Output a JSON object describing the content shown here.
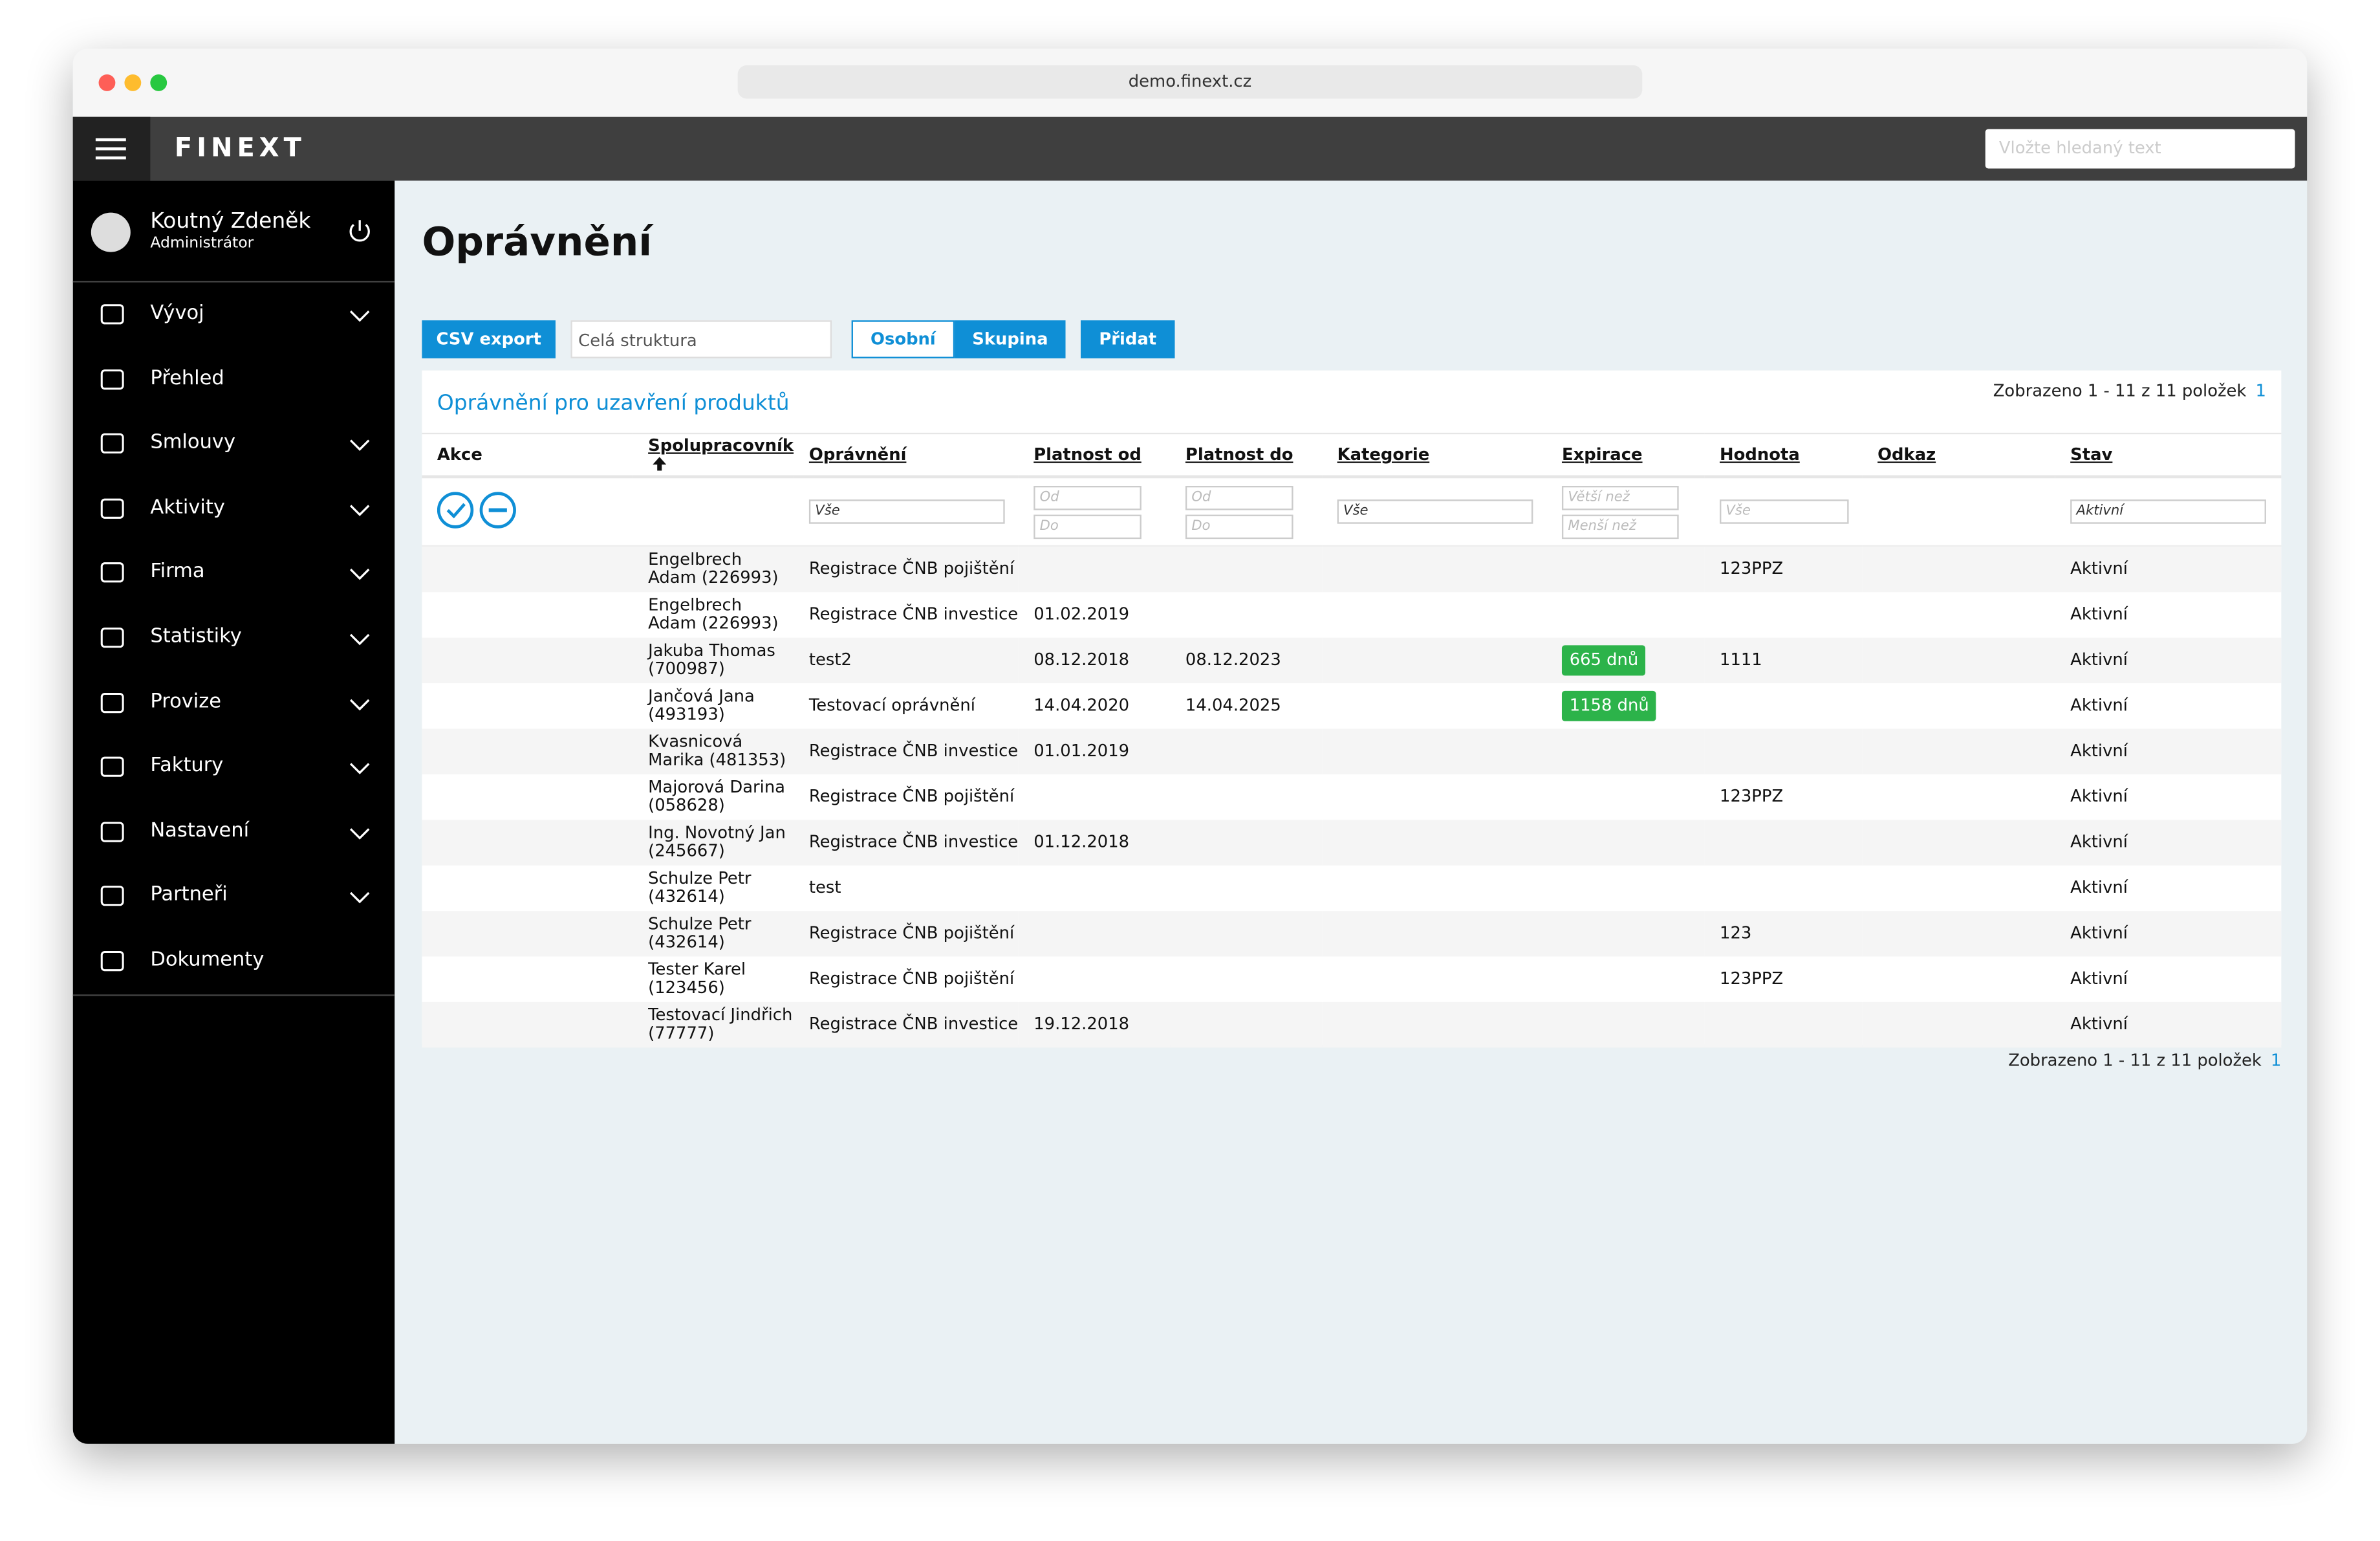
{
  "browser": {
    "url": "demo.finext.cz"
  },
  "header": {
    "logo": "FINEXT",
    "search_placeholder": "Vložte hledaný text"
  },
  "user": {
    "name": "Koutný Zdeněk",
    "role": "Administrátor"
  },
  "nav": [
    {
      "label": "Vývoj",
      "expandable": true
    },
    {
      "label": "Přehled",
      "expandable": false
    },
    {
      "label": "Smlouvy",
      "expandable": true
    },
    {
      "label": "Aktivity",
      "expandable": true
    },
    {
      "label": "Firma",
      "expandable": true
    },
    {
      "label": "Statistiky",
      "expandable": true
    },
    {
      "label": "Provize",
      "expandable": true
    },
    {
      "label": "Faktury",
      "expandable": true
    },
    {
      "label": "Nastavení",
      "expandable": true
    },
    {
      "label": "Partneři",
      "expandable": true
    },
    {
      "label": "Dokumenty",
      "expandable": false
    }
  ],
  "page": {
    "title": "Oprávnění"
  },
  "toolbar": {
    "export": "CSV export",
    "scope_placeholder": "Celá struktura",
    "tabs": [
      "Osobní",
      "Skupina"
    ],
    "add": "Přidat"
  },
  "panel": {
    "title": "Oprávnění pro uzavření produktů",
    "pagination": "Zobrazeno 1 - 11 z 11 položek",
    "page": 1
  },
  "table": {
    "columns": [
      "Akce",
      "Spolupracovník",
      "Oprávnění",
      "Platnost od",
      "Platnost do",
      "Kategorie",
      "Expirace",
      "Hodnota",
      "Odkaz",
      "Stav"
    ],
    "filters": [
      null,
      null,
      "Vše",
      [
        "Od",
        "Do"
      ],
      [
        "Od",
        "Do"
      ],
      "Vše",
      [
        "Větší než",
        "Menší než"
      ],
      "Vše",
      null,
      "Aktivní"
    ],
    "rows": [
      [
        null,
        "Engelbrech Adam (226993)",
        "Registrace ČNB pojištění",
        null,
        null,
        null,
        null,
        "123PPZ",
        null,
        "Aktivní"
      ],
      [
        null,
        "Engelbrech Adam (226993)",
        "Registrace ČNB investice",
        "01.02.2019",
        null,
        null,
        null,
        null,
        null,
        "Aktivní"
      ],
      [
        null,
        "Jakuba Thomas (700987)",
        "test2",
        "08.12.2018",
        "08.12.2023",
        null,
        "665 dnů",
        "1111",
        null,
        "Aktivní"
      ],
      [
        null,
        "Jančová Jana (493193)",
        "Testovací oprávnění",
        "14.04.2020",
        "14.04.2025",
        null,
        "1158 dnů",
        null,
        null,
        "Aktivní"
      ],
      [
        null,
        "Kvasnicová Marika (481353)",
        "Registrace ČNB investice",
        "01.01.2019",
        null,
        null,
        null,
        null,
        null,
        "Aktivní"
      ],
      [
        null,
        "Majorová Darina (058628)",
        "Registrace ČNB pojištění",
        null,
        null,
        null,
        null,
        "123PPZ",
        null,
        "Aktivní"
      ],
      [
        null,
        "Ing. Novotný Jan (245667)",
        "Registrace ČNB investice",
        "01.12.2018",
        null,
        null,
        null,
        null,
        null,
        "Aktivní"
      ],
      [
        null,
        "Schulze Petr (432614)",
        "test",
        null,
        null,
        null,
        null,
        null,
        null,
        "Aktivní"
      ],
      [
        null,
        "Schulze Petr (432614)",
        "Registrace ČNB pojištění",
        null,
        null,
        null,
        null,
        "123",
        null,
        "Aktivní"
      ],
      [
        null,
        "Tester Karel (123456)",
        "Registrace ČNB pojištění",
        null,
        null,
        null,
        null,
        "123PPZ",
        null,
        "Aktivní"
      ],
      [
        null,
        "Testovací Jindřich (77777)",
        "Registrace ČNB investice",
        "19.12.2018",
        null,
        null,
        null,
        null,
        null,
        "Aktivní"
      ]
    ]
  }
}
